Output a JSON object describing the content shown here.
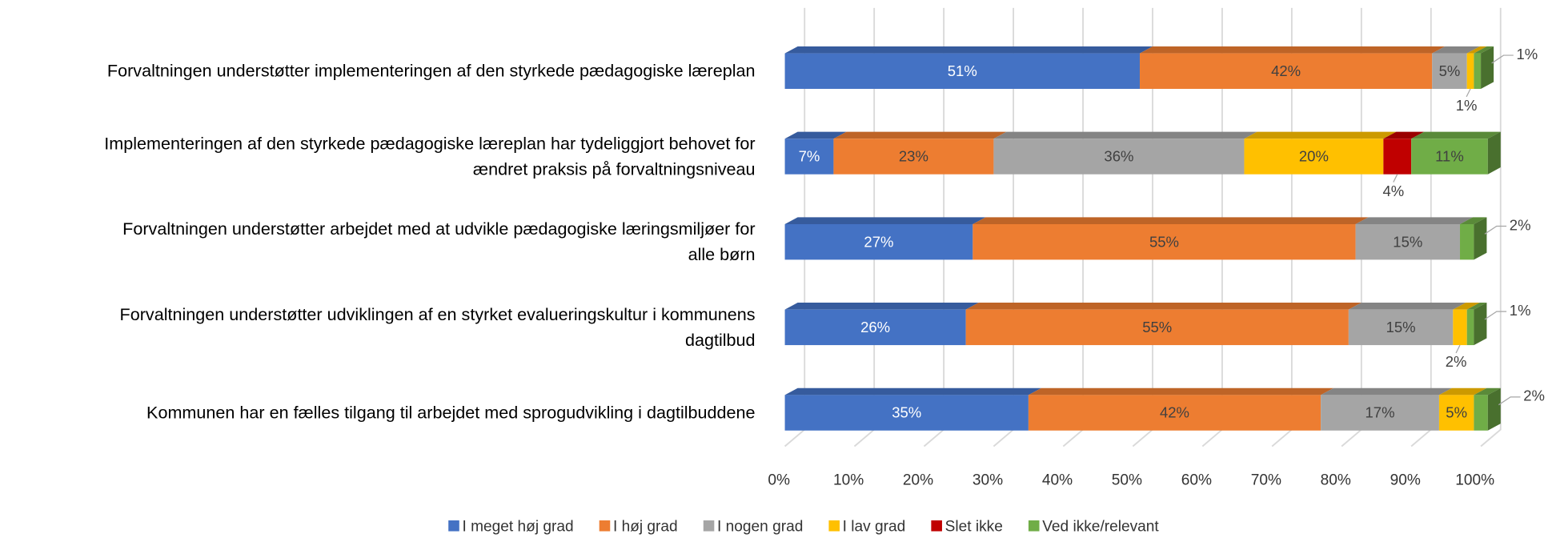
{
  "chart_data": {
    "type": "bar3d_stacked_horizontal",
    "categories": [
      [
        "Forvaltningen understøtter implementeringen af den styrkede pædagogiske læreplan"
      ],
      [
        "Implementeringen af den styrkede pædagogiske læreplan har tydeliggjort behovet for",
        "ændret praksis på forvaltningsniveau"
      ],
      [
        "Forvaltningen understøtter arbejdet med at udvikle pædagogiske læringsmiljøer for",
        "alle børn"
      ],
      [
        "Forvaltningen understøtter udviklingen af en styrket evalueringskultur i kommunens",
        "dagtilbud"
      ],
      [
        "Kommunen har en fælles tilgang til arbejdet med sprogudvikling i dagtilbuddene"
      ]
    ],
    "series": [
      {
        "name": "I meget høj grad",
        "color": "#4472c4",
        "values": [
          51,
          7,
          27,
          26,
          35
        ],
        "value_labels": [
          "51%",
          "7%",
          "27%",
          "26%",
          "35%"
        ]
      },
      {
        "name": "I høj grad",
        "color": "#ed7d31",
        "values": [
          42,
          23,
          55,
          55,
          42
        ],
        "value_labels": [
          "42%",
          "23%",
          "55%",
          "55%",
          "42%"
        ]
      },
      {
        "name": "I nogen grad",
        "color": "#a5a5a5",
        "values": [
          5,
          36,
          15,
          15,
          17
        ],
        "value_labels": [
          "5%",
          "36%",
          "15%",
          "15%",
          "17%"
        ]
      },
      {
        "name": "I lav grad",
        "color": "#ffc000",
        "values": [
          1,
          20,
          0,
          2,
          5
        ],
        "value_labels": [
          "1%",
          "20%",
          null,
          "2%",
          "5%"
        ]
      },
      {
        "name": "Slet ikke",
        "color": "#c00000",
        "values": [
          0,
          4,
          0,
          0,
          0
        ],
        "value_labels": [
          null,
          "4%",
          null,
          null,
          null
        ]
      },
      {
        "name": "Ved ikke/relevant",
        "color": "#70ad47",
        "values": [
          1,
          11,
          2,
          1,
          2
        ],
        "value_labels": [
          "1%",
          "11%",
          "2%",
          "1%",
          "2%"
        ]
      }
    ],
    "xlim": [
      0,
      100
    ],
    "xticks": [
      {
        "value": 0,
        "label": "0%"
      },
      {
        "value": 10,
        "label": "10%"
      },
      {
        "value": 20,
        "label": "20%"
      },
      {
        "value": 30,
        "label": "30%"
      },
      {
        "value": 40,
        "label": "40%"
      },
      {
        "value": 50,
        "label": "50%"
      },
      {
        "value": 60,
        "label": "60%"
      },
      {
        "value": 70,
        "label": "70%"
      },
      {
        "value": 80,
        "label": "80%"
      },
      {
        "value": 90,
        "label": "90%"
      },
      {
        "value": 100,
        "label": "100%"
      }
    ],
    "grid": true,
    "legend": "bottom"
  }
}
